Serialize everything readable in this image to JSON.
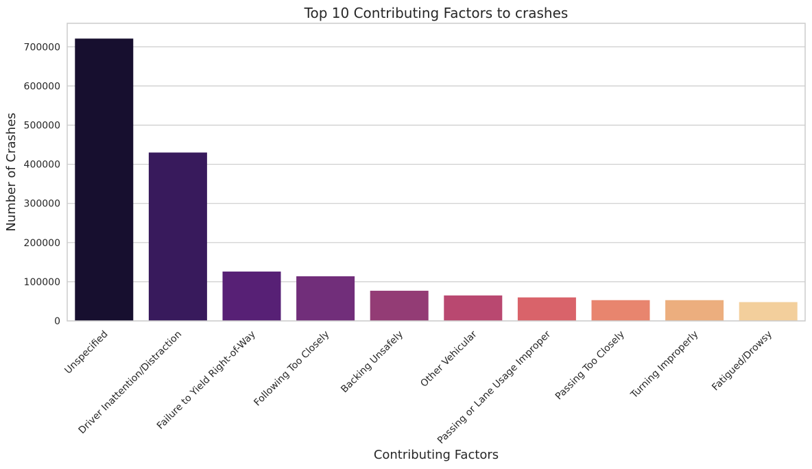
{
  "chart_data": {
    "type": "bar",
    "title": "Top 10 Contributing Factors to crashes",
    "xlabel": "Contributing Factors",
    "ylabel": "Number of Crashes",
    "categories": [
      "Unspecified",
      "Driver Inattention/Distraction",
      "Failure to Yield Right-of-Way",
      "Following Too Closely",
      "Backing Unsafely",
      "Other Vehicular",
      "Passing or Lane Usage Improper",
      "Passing Too Closely",
      "Turning Improperly",
      "Fatigued/Drowsy"
    ],
    "values": [
      721000,
      430000,
      126000,
      114000,
      77000,
      65000,
      60000,
      53000,
      53000,
      48000
    ],
    "colors": [
      "#170f2f",
      "#381a5c",
      "#572075",
      "#712e7a",
      "#933c75",
      "#b94870",
      "#d9636a",
      "#e8856e",
      "#ecae7e",
      "#f3cf9c"
    ],
    "ylim": [
      0,
      760000
    ],
    "yticks": [
      0,
      100000,
      200000,
      300000,
      400000,
      500000,
      600000,
      700000
    ],
    "ytick_labels": [
      "0",
      "100000",
      "200000",
      "300000",
      "400000",
      "500000",
      "600000",
      "700000"
    ],
    "grid": "y",
    "legend": "none"
  }
}
